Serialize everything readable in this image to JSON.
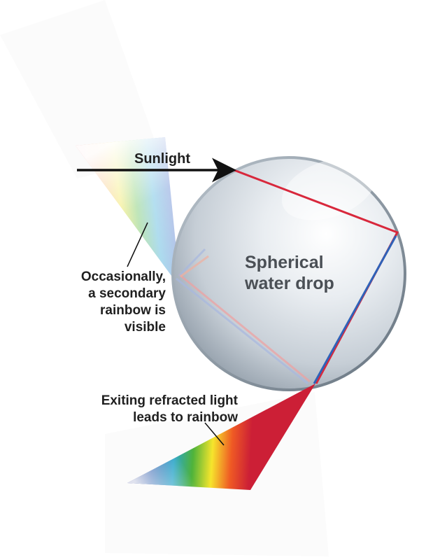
{
  "labels": {
    "sunlight": "Sunlight",
    "drop_line1": "Spherical",
    "drop_line2": "water drop",
    "secondary_line1": "Occasionally,",
    "secondary_line2": "a secondary",
    "secondary_line3": "rainbow is",
    "secondary_line4": "visible",
    "exit_line1": "Exiting refracted light",
    "exit_line2": "leads to rainbow"
  },
  "colors": {
    "primary_ray": "#d8283c",
    "blue_ray": "#2f62b8",
    "arrow": "#111111",
    "drop_edge": "#7e8a96"
  },
  "spectrum": [
    "#cc1f36",
    "#ef5a24",
    "#f6e52c",
    "#4fb33a",
    "#2aa5c9",
    "#1b53a8",
    "#303a8c"
  ]
}
